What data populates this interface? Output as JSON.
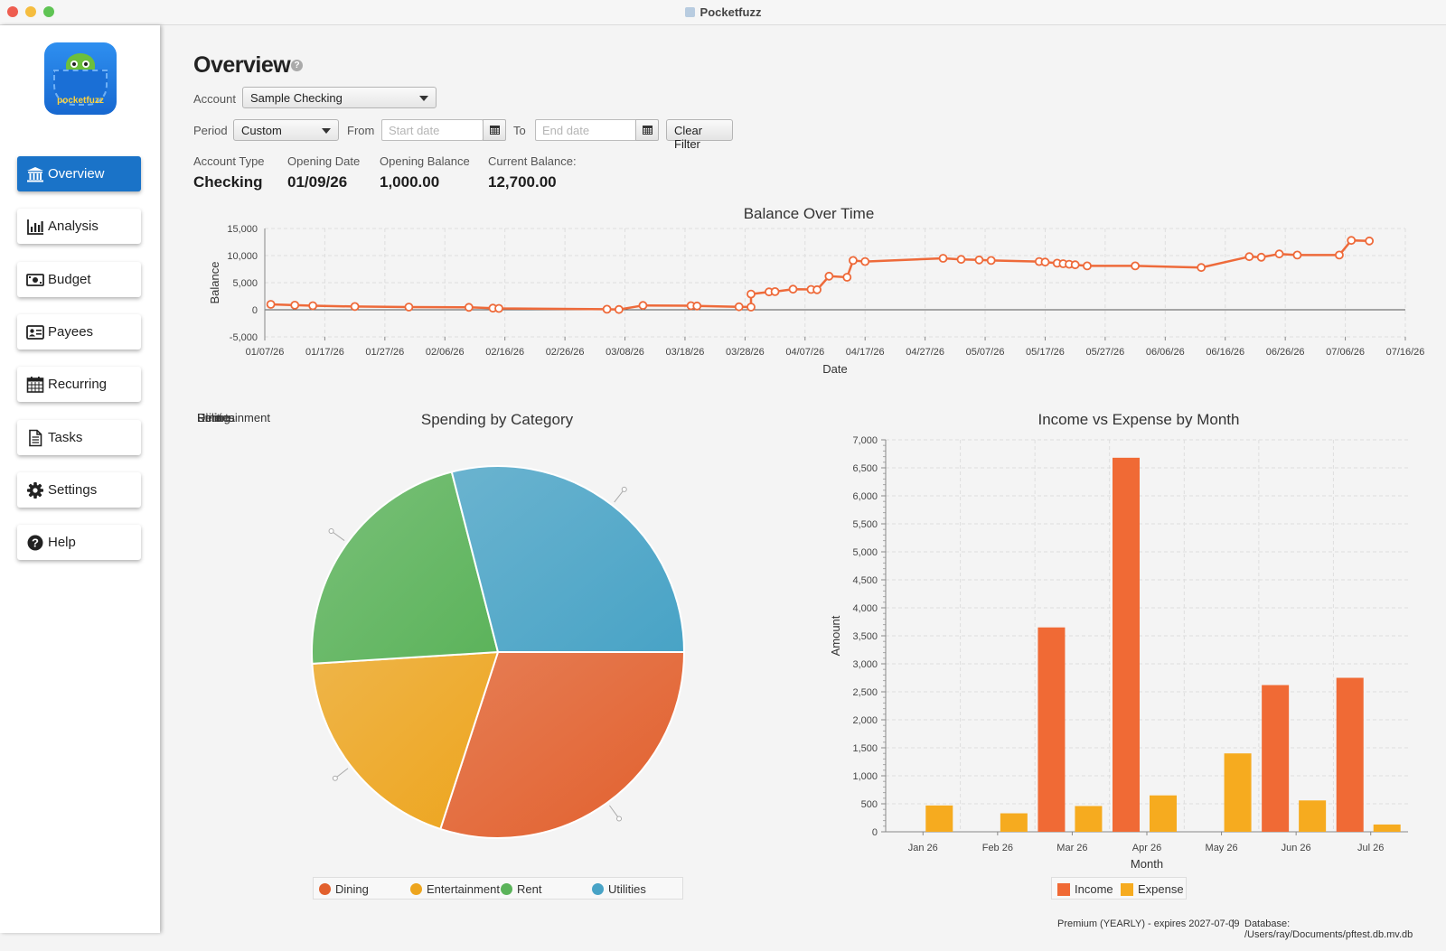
{
  "window": {
    "title": "Pocketfuzz"
  },
  "logo": {
    "text": "pocketfuzz"
  },
  "sidebar": {
    "items": [
      {
        "label": "Overview",
        "icon": "bank-icon",
        "active": true
      },
      {
        "label": "Analysis",
        "icon": "bar-chart-icon",
        "active": false
      },
      {
        "label": "Budget",
        "icon": "money-icon",
        "active": false
      },
      {
        "label": "Payees",
        "icon": "contact-card-icon",
        "active": false
      },
      {
        "label": "Recurring",
        "icon": "calendar-icon",
        "active": false
      },
      {
        "label": "Tasks",
        "icon": "document-icon",
        "active": false
      },
      {
        "label": "Settings",
        "icon": "gear-icon",
        "active": false
      },
      {
        "label": "Help",
        "icon": "help-icon",
        "active": false
      }
    ]
  },
  "header": {
    "title": "Overview",
    "help_icon": "?"
  },
  "filters": {
    "account_label": "Account",
    "account_value": "Sample Checking",
    "period_label": "Period",
    "period_value": "Custom",
    "from_label": "From",
    "from_placeholder": "Start date",
    "to_label": "To",
    "to_placeholder": "End date",
    "clear_label": "Clear Filter"
  },
  "account_info": {
    "type_label": "Account Type",
    "type_value": "Checking",
    "opening_date_label": "Opening Date",
    "opening_date_value": "01/09/26",
    "opening_balance_label": "Opening Balance",
    "opening_balance_value": "1,000.00",
    "current_balance_label": "Current Balance:",
    "current_balance_value": "12,700.00"
  },
  "chart_data": [
    {
      "type": "line",
      "title": "Balance Over Time",
      "xlabel": "Date",
      "ylabel": "Balance",
      "ylim": [
        -5000,
        15000
      ],
      "yticks": [
        "15,000",
        "10,000",
        "5,000",
        "0",
        "-5,000"
      ],
      "xticks": [
        "01/07/26",
        "01/17/26",
        "01/27/26",
        "02/06/26",
        "02/16/26",
        "02/26/26",
        "03/08/26",
        "03/18/26",
        "03/28/26",
        "04/07/26",
        "04/17/26",
        "04/27/26",
        "05/07/26",
        "05/17/26",
        "05/27/26",
        "06/06/26",
        "06/16/26",
        "06/26/26",
        "07/06/26",
        "07/16/26"
      ],
      "x_start": "2026-01-07",
      "x_end": "2026-07-16",
      "series": [
        {
          "points": [
            [
              "2026-01-08",
              1000
            ],
            [
              "2026-01-12",
              850
            ],
            [
              "2026-01-15",
              750
            ],
            [
              "2026-01-22",
              600
            ],
            [
              "2026-01-31",
              500
            ],
            [
              "2026-02-10",
              450
            ],
            [
              "2026-02-14",
              300
            ],
            [
              "2026-02-15",
              250
            ],
            [
              "2026-03-05",
              100
            ],
            [
              "2026-03-07",
              50
            ],
            [
              "2026-03-11",
              800
            ],
            [
              "2026-03-19",
              750
            ],
            [
              "2026-03-20",
              700
            ],
            [
              "2026-03-27",
              550
            ],
            [
              "2026-03-29",
              500
            ],
            [
              "2026-03-29",
              2900
            ],
            [
              "2026-04-01",
              3300
            ],
            [
              "2026-04-02",
              3350
            ],
            [
              "2026-04-05",
              3800
            ],
            [
              "2026-04-08",
              3750
            ],
            [
              "2026-04-09",
              3700
            ],
            [
              "2026-04-11",
              6200
            ],
            [
              "2026-04-14",
              6000
            ],
            [
              "2026-04-15",
              9100
            ],
            [
              "2026-04-17",
              8900
            ],
            [
              "2026-04-30",
              9500
            ],
            [
              "2026-05-03",
              9300
            ],
            [
              "2026-05-06",
              9200
            ],
            [
              "2026-05-08",
              9100
            ],
            [
              "2026-05-16",
              8900
            ],
            [
              "2026-05-17",
              8800
            ],
            [
              "2026-05-19",
              8600
            ],
            [
              "2026-05-20",
              8500
            ],
            [
              "2026-05-21",
              8400
            ],
            [
              "2026-05-22",
              8300
            ],
            [
              "2026-05-24",
              8100
            ],
            [
              "2026-06-01",
              8100
            ],
            [
              "2026-06-12",
              7800
            ],
            [
              "2026-06-20",
              9800
            ],
            [
              "2026-06-22",
              9700
            ],
            [
              "2026-06-25",
              10300
            ],
            [
              "2026-06-28",
              10100
            ],
            [
              "2026-07-05",
              10100
            ],
            [
              "2026-07-07",
              12800
            ],
            [
              "2026-07-10",
              12700
            ]
          ]
        }
      ]
    },
    {
      "type": "pie",
      "title": "Spending by Category",
      "slices": [
        {
          "label": "Dining",
          "value": 30,
          "color": "#e2602d"
        },
        {
          "label": "Entertainment",
          "value": 19,
          "color": "#eda51e"
        },
        {
          "label": "Rent",
          "value": 22,
          "color": "#5bb35a"
        },
        {
          "label": "Utilities",
          "value": 29,
          "color": "#48a3c6"
        }
      ],
      "overlapping_labels": [
        "Dining",
        "Entertainment",
        "Rent",
        "Utilities"
      ]
    },
    {
      "type": "bar",
      "title": "Income vs Expense by Month",
      "xlabel": "Month",
      "ylabel": "Amount",
      "ylim": [
        0,
        7000
      ],
      "yticks": [
        "7,000",
        "6,500",
        "6,000",
        "5,500",
        "5,000",
        "4,500",
        "4,000",
        "3,500",
        "3,000",
        "2,500",
        "2,000",
        "1,500",
        "1,000",
        "500",
        "0"
      ],
      "categories": [
        "Jan 26",
        "Feb 26",
        "Mar 26",
        "Apr 26",
        "May 26",
        "Jun 26",
        "Jul 26"
      ],
      "series": [
        {
          "name": "Income",
          "color": "#f06a35",
          "values": [
            0,
            0,
            3650,
            6680,
            0,
            2620,
            2750
          ]
        },
        {
          "name": "Expense",
          "color": "#f6ab1f",
          "values": [
            470,
            330,
            460,
            650,
            1400,
            560,
            130
          ]
        }
      ]
    }
  ],
  "status_bar": {
    "license": "Premium (YEARLY) - expires 2027-07-09",
    "separator": "|",
    "database": "Database: /Users/ray/Documents/pftest.db.mv.db"
  }
}
